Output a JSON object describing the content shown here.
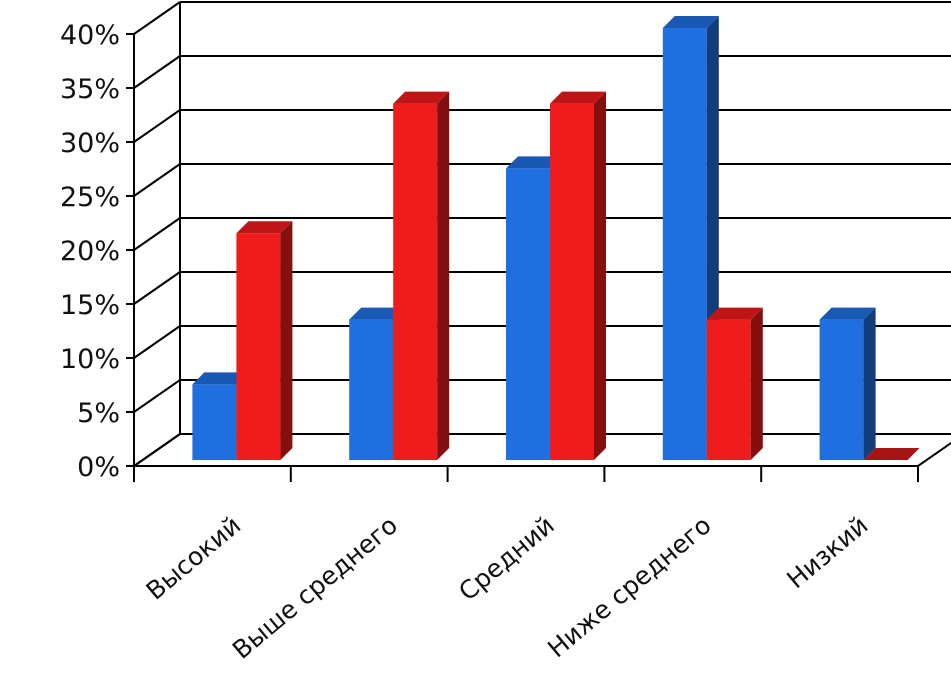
{
  "chart_data": {
    "type": "bar",
    "style": "3d-clustered-column",
    "categories": [
      "Высокий",
      "Выше среднего",
      "Средний",
      "Ниже среднего",
      "Низкий"
    ],
    "series": [
      {
        "values": [
          7,
          13,
          27,
          40,
          13
        ],
        "color": "#1f6fe0"
      },
      {
        "values": [
          21,
          33,
          33,
          13,
          0
        ],
        "color": "#ee1c1c"
      }
    ],
    "y_ticks": [
      "0%",
      "5%",
      "10%",
      "15%",
      "20%",
      "25%",
      "30%",
      "35%",
      "40%"
    ],
    "ylim": [
      0,
      40
    ],
    "grid": true,
    "legend": "none",
    "title": "",
    "xlabel": "",
    "ylabel": ""
  }
}
